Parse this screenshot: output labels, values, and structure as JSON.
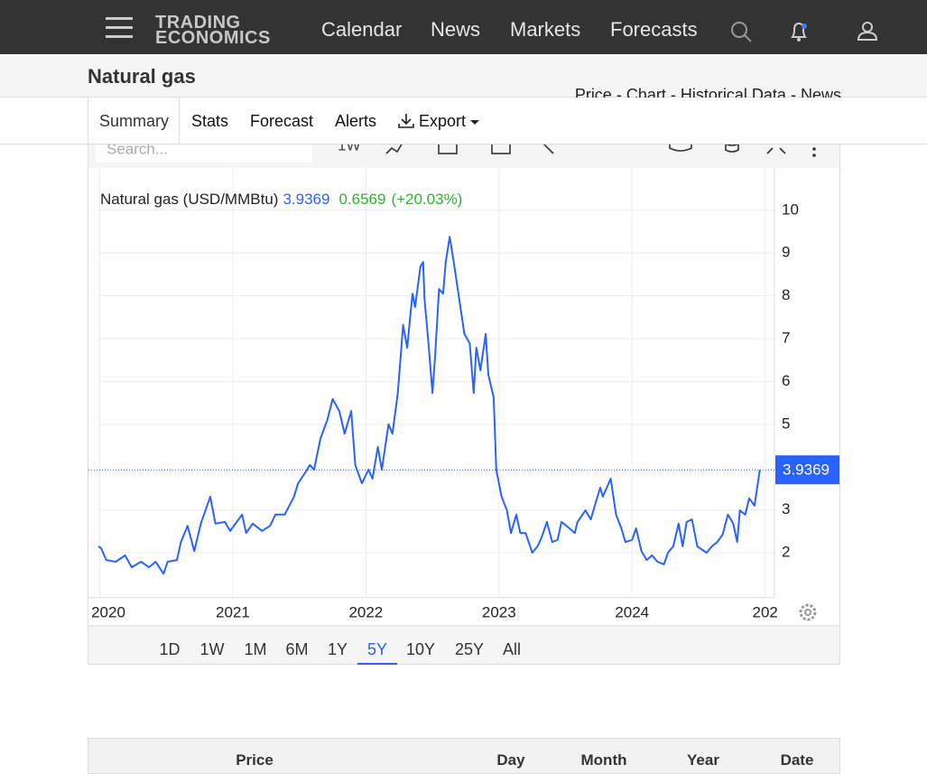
{
  "nav": {
    "logo_top": "TRADING",
    "logo_bottom": "ECONOMICS",
    "links": [
      "Calendar",
      "News",
      "Markets",
      "Forecasts"
    ]
  },
  "header": {
    "title": "Natural gas",
    "links": [
      "Price",
      "Chart",
      "Historical Data",
      "News"
    ],
    "separator": "-"
  },
  "tabs": [
    "Summary",
    "Stats",
    "Forecast",
    "Alerts",
    "Export"
  ],
  "toolbar": {
    "search_placeholder": "Search...",
    "interval": "1W"
  },
  "chart_data": {
    "type": "line",
    "change": "0.6569",
    "change_percent": "(+20.03%)",
    "x": [
      2019.99,
      2020.01,
      2020.05,
      2020.12,
      2020.19,
      2020.24,
      2020.31,
      2020.37,
      2020.42,
      2020.48,
      2020.51,
      2020.58,
      2020.61,
      2020.66,
      2020.71,
      2020.76,
      2020.83,
      2020.87,
      2020.94,
      2020.98,
      2021.03,
      2021.07,
      2021.1,
      2021.15,
      2021.22,
      2021.28,
      2021.32,
      2021.39,
      2021.46,
      2021.49,
      2021.55,
      2021.58,
      2021.61,
      2021.66,
      2021.71,
      2021.75,
      2021.8,
      2021.84,
      2021.89,
      2021.92,
      2021.97,
      2022.02,
      2022.05,
      2022.09,
      2022.12,
      2022.17,
      2022.2,
      2022.24,
      2022.28,
      2022.31,
      2022.35,
      2022.37,
      2022.41,
      2022.43,
      2022.44,
      2022.47,
      2022.5,
      2022.52,
      2022.55,
      2022.58,
      2022.6,
      2022.63,
      2022.66,
      2022.7,
      2022.74,
      2022.78,
      2022.81,
      2022.83,
      2022.86,
      2022.9,
      2022.92,
      2022.96,
      2022.98,
      2023.02,
      2023.06,
      2023.09,
      2023.13,
      2023.16,
      2023.2,
      2023.25,
      2023.29,
      2023.32,
      2023.36,
      2023.4,
      2023.44,
      2023.47,
      2023.53,
      2023.57,
      2023.59,
      2023.65,
      2023.69,
      2023.73,
      2023.76,
      2023.78,
      2023.81,
      2023.84,
      2023.88,
      2023.92,
      2023.95,
      2024.0,
      2024.03,
      2024.07,
      2024.11,
      2024.15,
      2024.19,
      2024.24,
      2024.27,
      2024.31,
      2024.35,
      2024.38,
      2024.41,
      2024.45,
      2024.49,
      2024.56,
      2024.6,
      2024.64,
      2024.68,
      2024.72,
      2024.76,
      2024.79,
      2024.81,
      2024.85,
      2024.88,
      2024.92,
      2024.96
    ],
    "series": [
      {
        "name": "Natural gas (USD/MMBtu)",
        "color": "#2962ff",
        "values": [
          2.15,
          2.11,
          1.83,
          1.79,
          1.94,
          1.66,
          1.79,
          1.66,
          1.79,
          1.51,
          1.79,
          1.83,
          2.25,
          2.63,
          2.04,
          2.68,
          3.31,
          2.68,
          2.72,
          2.51,
          2.72,
          2.89,
          2.46,
          2.68,
          2.51,
          2.63,
          2.89,
          2.89,
          3.31,
          3.62,
          3.9,
          4.05,
          3.94,
          4.68,
          5.1,
          5.59,
          5.31,
          4.78,
          5.31,
          4.05,
          3.62,
          3.94,
          3.73,
          4.47,
          3.94,
          5.0,
          4.78,
          5.73,
          7.32,
          6.79,
          8.05,
          7.74,
          8.69,
          8.79,
          7.95,
          6.89,
          5.73,
          6.58,
          8.16,
          8.05,
          8.79,
          9.38,
          8.79,
          7.95,
          7.11,
          6.89,
          5.73,
          6.79,
          6.26,
          7.11,
          6.16,
          5.63,
          3.94,
          3.31,
          2.99,
          2.46,
          2.89,
          2.46,
          2.46,
          2.0,
          2.15,
          2.36,
          2.72,
          2.25,
          2.3,
          2.72,
          2.57,
          2.46,
          2.72,
          2.99,
          2.78,
          3.2,
          3.52,
          3.31,
          3.52,
          3.73,
          2.89,
          2.57,
          2.25,
          2.3,
          2.57,
          2.04,
          1.83,
          1.94,
          1.79,
          1.73,
          2.0,
          2.15,
          2.68,
          2.15,
          2.72,
          2.78,
          2.15,
          2.0,
          2.15,
          2.25,
          2.42,
          2.89,
          2.68,
          2.25,
          2.99,
          2.89,
          3.27,
          3.1,
          3.9369
        ]
      }
    ],
    "xlim": [
      2019.99,
      2025.07
    ],
    "xticks": [
      2020,
      2021,
      2022,
      2023,
      2024,
      {
        "value": 2025,
        "label": "202"
      }
    ],
    "ylim": [
      0.95,
      11
    ],
    "yticks": [
      2,
      3,
      5,
      6,
      7,
      8,
      9,
      10
    ],
    "grid": true
  },
  "ranges": {
    "items": [
      "1D",
      "1W",
      "1M",
      "6M",
      "1Y",
      "5Y",
      "10Y",
      "25Y",
      "All"
    ],
    "active_index": 5
  },
  "table": {
    "headers": [
      "Price",
      "Day",
      "Month",
      "Year",
      "Date"
    ]
  }
}
